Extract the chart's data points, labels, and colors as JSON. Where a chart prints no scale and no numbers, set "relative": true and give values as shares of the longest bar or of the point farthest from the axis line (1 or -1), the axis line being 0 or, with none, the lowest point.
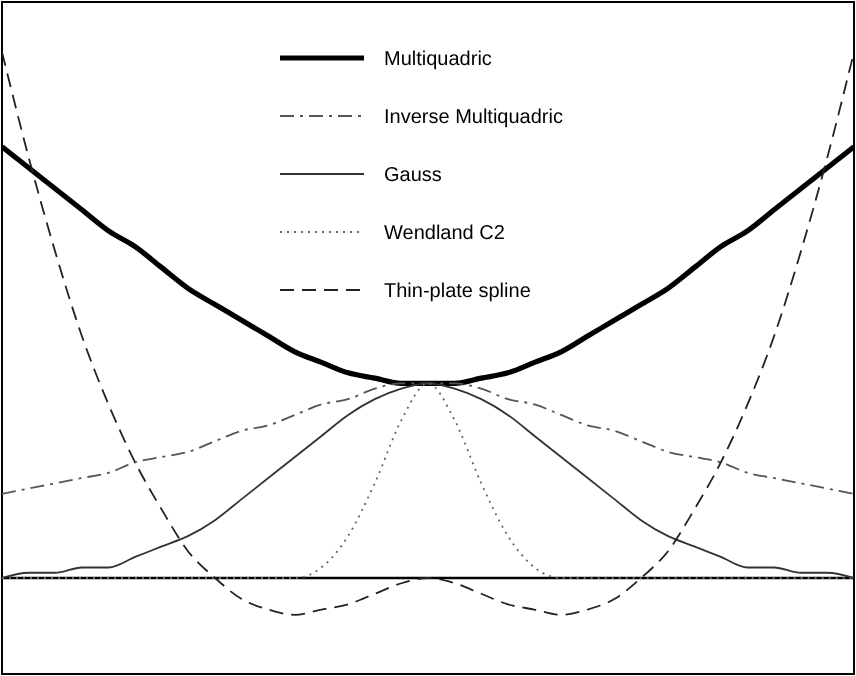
{
  "chart_data": {
    "type": "line",
    "relative": true,
    "legend": "top",
    "grid": false,
    "marker": "none",
    "categories": [
      null,
      null,
      null,
      null,
      null,
      null,
      null,
      null,
      null,
      null,
      null,
      null,
      null,
      null,
      null,
      null,
      null,
      null,
      null,
      null,
      null,
      null,
      null,
      null,
      null,
      null,
      null,
      null,
      null,
      null,
      null,
      null,
      null
    ],
    "series": [
      {
        "name": "Multiquadric",
        "color": "#000000",
        "line_style": "solid",
        "values": [
          0.82,
          0.78,
          0.74,
          0.7,
          0.66,
          0.63,
          0.59,
          0.55,
          0.52,
          0.49,
          0.46,
          0.43,
          0.41,
          0.39,
          0.38,
          0.37,
          0.37,
          0.37,
          0.38,
          0.39,
          0.41,
          0.43,
          0.46,
          0.49,
          0.52,
          0.55,
          0.59,
          0.63,
          0.66,
          0.7,
          0.74,
          0.78,
          0.82
        ]
      },
      {
        "name": "Inverse Multiquadric",
        "color": "#555555",
        "line_style": "dashdot",
        "values": [
          0.16,
          0.17,
          0.18,
          0.19,
          0.2,
          0.22,
          0.23,
          0.24,
          0.26,
          0.28,
          0.29,
          0.31,
          0.33,
          0.34,
          0.36,
          0.37,
          0.37,
          0.37,
          0.36,
          0.34,
          0.33,
          0.31,
          0.29,
          0.28,
          0.26,
          0.24,
          0.23,
          0.22,
          0.2,
          0.19,
          0.18,
          0.17,
          0.16
        ]
      },
      {
        "name": "Gauss",
        "color": "#333333",
        "line_style": "solid",
        "values": [
          0,
          0.01,
          0.01,
          0.02,
          0.02,
          0.04,
          0.06,
          0.08,
          0.11,
          0.15,
          0.19,
          0.23,
          0.27,
          0.31,
          0.34,
          0.36,
          0.37,
          0.36,
          0.34,
          0.31,
          0.27,
          0.23,
          0.19,
          0.15,
          0.11,
          0.08,
          0.06,
          0.04,
          0.02,
          0.02,
          0.01,
          0.01,
          0
        ]
      },
      {
        "name": "Wendland C2",
        "color": "#666666",
        "line_style": "dotted",
        "values": [
          0,
          0,
          0,
          0,
          0,
          0,
          0,
          0,
          0,
          0,
          0,
          0,
          0.02,
          0.08,
          0.18,
          0.3,
          0.37,
          0.3,
          0.18,
          0.08,
          0.02,
          0,
          0,
          0,
          0,
          0,
          0,
          0,
          0,
          0,
          0,
          0,
          0
        ]
      },
      {
        "name": "Thin-plate spline",
        "color": "#222222",
        "line_style": "dashed",
        "values": [
          1,
          0.8,
          0.62,
          0.46,
          0.33,
          0.22,
          0.13,
          0.05,
          0,
          -0.04,
          -0.06,
          -0.07,
          -0.06,
          -0.05,
          -0.03,
          -0.01,
          0,
          -0.01,
          -0.03,
          -0.05,
          -0.06,
          -0.07,
          -0.06,
          -0.04,
          0,
          0.05,
          0.13,
          0.22,
          0.33,
          0.46,
          0.62,
          0.8,
          1
        ]
      }
    ]
  }
}
